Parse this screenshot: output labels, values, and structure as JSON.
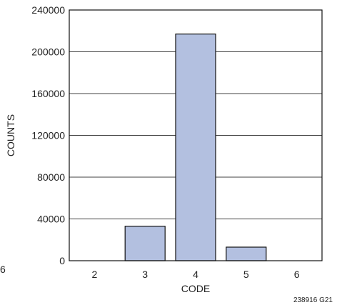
{
  "chart_data": {
    "type": "bar",
    "categories": [
      "2",
      "3",
      "4",
      "5",
      "6"
    ],
    "values": [
      0,
      33000,
      217000,
      13000,
      0
    ],
    "xlabel": "CODE",
    "ylabel": "COUNTS",
    "ylim": [
      0,
      240000
    ],
    "yticks": [
      0,
      40000,
      80000,
      120000,
      160000,
      200000,
      240000
    ],
    "grid": true,
    "colors": {
      "bar": "#b3c0e0",
      "bar_stroke": "#111111",
      "grid": "#000000"
    }
  },
  "figure_id": "238916 G21",
  "stray_label": "6"
}
